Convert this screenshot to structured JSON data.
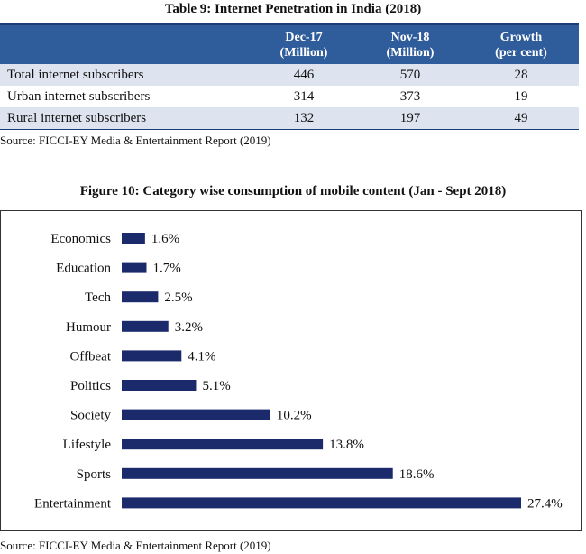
{
  "table": {
    "title": "Table 9: Internet Penetration in India (2018)",
    "headers": [
      "",
      "Dec-17\n(Million)",
      "Nov-18\n(Million)",
      "Growth\n(per cent)"
    ],
    "rows": [
      {
        "label": "Total internet subscribers",
        "dec17": "446",
        "nov18": "570",
        "growth": "28"
      },
      {
        "label": "Urban internet subscribers",
        "dec17": "314",
        "nov18": "373",
        "growth": "19"
      },
      {
        "label": "Rural internet subscribers",
        "dec17": "132",
        "nov18": "197",
        "growth": "49"
      }
    ],
    "source": "Source: FICCI-EY Media & Entertainment Report (2019)"
  },
  "figure": {
    "source": "Source: FICCI-EY Media & Entertainment Report (2019)"
  },
  "chart_data": {
    "type": "bar",
    "orientation": "horizontal",
    "title": "Figure 10: Category wise consumption of mobile content (Jan - Sept 2018)",
    "categories": [
      "Economics",
      "Education",
      "Tech",
      "Humour",
      "Offbeat",
      "Politics",
      "Society",
      "Lifestyle",
      "Sports",
      "Entertainment"
    ],
    "values": [
      1.6,
      1.7,
      2.5,
      3.2,
      4.1,
      5.1,
      10.2,
      13.8,
      18.6,
      27.4
    ],
    "value_labels": [
      "1.6%",
      "1.7%",
      "2.5%",
      "3.2%",
      "4.1%",
      "5.1%",
      "10.2%",
      "13.8%",
      "18.6%",
      "27.4%"
    ],
    "unit": "%",
    "bar_color": "#1b2a6b",
    "xlim": [
      0,
      27.4
    ],
    "grid": false,
    "legend": "none"
  }
}
